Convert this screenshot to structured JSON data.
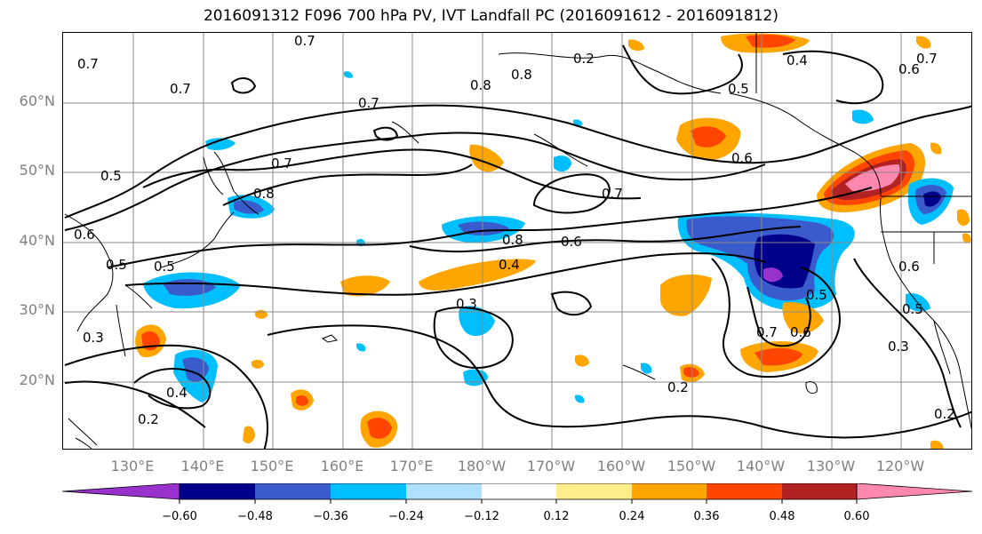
{
  "title": "2016091312 F096 700 hPa PV, IVT Landfall PC (2016091612 - 2016091812)",
  "lat_labels": [
    "60°N",
    "50°N",
    "40°N",
    "30°N",
    "20°N"
  ],
  "lon_labels": [
    "130°E",
    "140°E",
    "150°E",
    "160°E",
    "170°E",
    "180°W",
    "170°W",
    "160°W",
    "150°W",
    "140°W",
    "130°W",
    "120°W"
  ],
  "contour_labels": [
    "0.7",
    "0.7",
    "0.7",
    "0.8",
    "0.8",
    "0.5",
    "0.4",
    "0.6",
    "0.7",
    "0.7",
    "0.8",
    "0.6",
    "0.5",
    "0.5",
    "0.6",
    "0.7",
    "0.8",
    "0.7",
    "0.6",
    "0.4",
    "0.5",
    "0.3",
    "0.5",
    "0.6",
    "0.7",
    "0.3",
    "0.5",
    "0.6",
    "0.4",
    "0.2",
    "0.2",
    "0.3",
    "0.2",
    "0.2"
  ],
  "colorbar": {
    "colors": [
      "#9932cc",
      "#00008b",
      "#3a5bcc",
      "#00bfff",
      "#b0e0ff",
      "#ffffff",
      "#ffec8b",
      "#ffa500",
      "#ff4500",
      "#b22222",
      "#ff88b0"
    ],
    "tick_labels": [
      "−0.60",
      "−0.48",
      "−0.36",
      "−0.24",
      "−0.12",
      "0.12",
      "0.24",
      "0.36",
      "0.48",
      "0.60"
    ]
  }
}
